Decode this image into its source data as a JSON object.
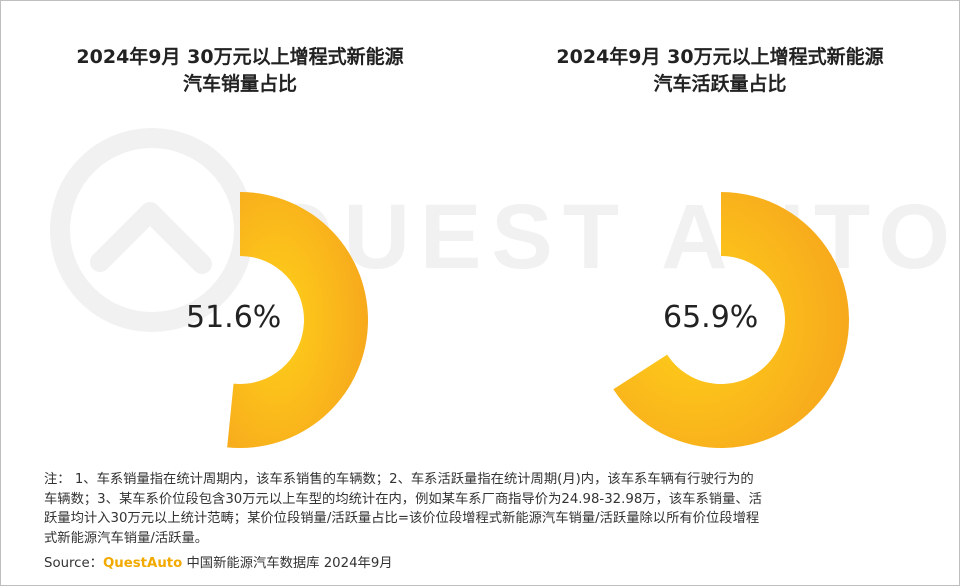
{
  "chart_data": [
    {
      "type": "pie",
      "title_line1": "2024年9月 30万元以上增程式新能源",
      "title_line2": "汽车销量占比",
      "value_pct": 51.6,
      "label": "51.6%",
      "color_start": "#ffd21a",
      "color_end": "#f7a91c"
    },
    {
      "type": "pie",
      "title_line1": "2024年9月 30万元以上增程式新能源",
      "title_line2": "汽车活跃量占比",
      "value_pct": 65.9,
      "label": "65.9%",
      "color_start": "#ffd21a",
      "color_end": "#f7a91c"
    }
  ],
  "watermark_text": "QUEST AUTO",
  "notes": [
    "注： 1、车系销量指在统计周期内，该车系销售的车辆数；2、车系活跃量指在统计周期(月)内，该车系车辆有行驶行为的",
    "车辆数；3、某车系价位段包含30万元以上车型的均统计在内，例如某车系厂商指导价为24.98-32.98万，该车系销量、活",
    "跃量均计入30万元以上统计范畴；某价位段销量/活跃量占比=该价位段增程式新能源汽车销量/活跃量除以所有价位段增程",
    "式新能源汽车销量/活跃量。"
  ],
  "source": {
    "prefix": "Source：",
    "brand": "QuestAuto",
    "suffix": " 中国新能源汽车数据库 2024年9月"
  }
}
